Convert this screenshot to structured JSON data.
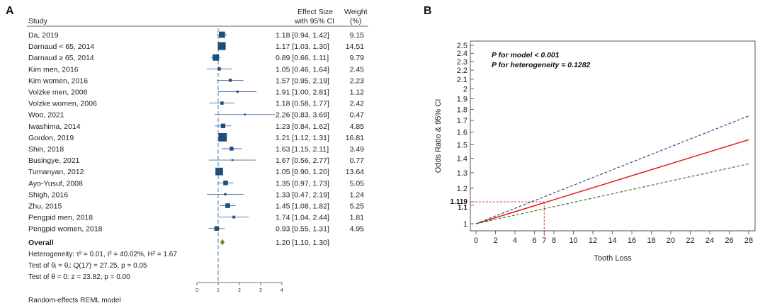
{
  "colors": {
    "marker": "#1f4e79",
    "ci_line": "#4a6f9c",
    "null_line": "#7fa4c8",
    "overall_diamond": "#6b8e23",
    "red": "#e41a1c",
    "blue_dashed": "#34508a",
    "green_dashed": "#3b7d23",
    "ref_dashed": "#e41a1c"
  },
  "panel_a": {
    "label": "A",
    "header_study": "Study",
    "header_es_line1": "Effect Size",
    "header_es_line2": "with 95% CI",
    "header_weight_line1": "Weight",
    "header_weight_line2": "(%)",
    "overall": {
      "label": "Overall",
      "est": 1.2,
      "lo": 1.1,
      "hi": 1.3,
      "ci_text": "1.20 [1.10,  1.30]"
    },
    "heterogeneity": "Heterogeneity: τ² = 0.01, I² = 40.02%, H² = 1.67",
    "test_theta_eq": "Test of θᵢ = θⱼ: Q(17) = 27.25, p = 0.05",
    "test_theta_zero": "Test of θ = 0: z = 23.82, p = 0.00",
    "model_note": "Random-effects REML model",
    "x_ticks": [
      "0",
      "1",
      "2",
      "3",
      "4"
    ]
  },
  "panel_b": {
    "label": "B",
    "annotation_1": "P for model < 0.001",
    "annotation_2": "P for heterogeneity = 0.1282",
    "ref_y_label_1": "1.119",
    "ref_y_label_2": "1.1",
    "ref_x_label": "7"
  },
  "chart_data": [
    {
      "type": "forest",
      "studies": [
        {
          "name": "Da, 2019",
          "est": 1.18,
          "lo": 0.94,
          "hi": 1.42,
          "ci_text": "1.18 [0.94,  1.42]",
          "weight": "9.15"
        },
        {
          "name": "Darnaud < 65, 2014",
          "est": 1.17,
          "lo": 1.03,
          "hi": 1.3,
          "ci_text": "1.17 [1.03,  1.30]",
          "weight": "14.51"
        },
        {
          "name": "Darnaud ≥ 65, 2014",
          "est": 0.89,
          "lo": 0.66,
          "hi": 1.11,
          "ci_text": "0.89 [0.66,  1.11]",
          "weight": "9.79"
        },
        {
          "name": "Kim men, 2016",
          "est": 1.05,
          "lo": 0.46,
          "hi": 1.64,
          "ci_text": "1.05 [0.46,  1.64]",
          "weight": "2.45"
        },
        {
          "name": "Kim women, 2016",
          "est": 1.57,
          "lo": 0.95,
          "hi": 2.19,
          "ci_text": "1.57 [0.95,  2.19]",
          "weight": "2.23"
        },
        {
          "name": "Volzke men, 2006",
          "est": 1.91,
          "lo": 1.0,
          "hi": 2.81,
          "ci_text": "1.91 [1.00,  2.81]",
          "weight": "1.12"
        },
        {
          "name": "Volzke women, 2006",
          "est": 1.18,
          "lo": 0.58,
          "hi": 1.77,
          "ci_text": "1.18 [0.58,  1.77]",
          "weight": "2.42"
        },
        {
          "name": "Woo, 2021",
          "est": 2.26,
          "lo": 0.83,
          "hi": 3.69,
          "ci_text": "2.26 [0.83,  3.69]",
          "weight": "0.47"
        },
        {
          "name": "Iwashima, 2014",
          "est": 1.23,
          "lo": 0.84,
          "hi": 1.62,
          "ci_text": "1.23 [0.84,  1.62]",
          "weight": "4.85"
        },
        {
          "name": "Gordon, 2019",
          "est": 1.21,
          "lo": 1.12,
          "hi": 1.31,
          "ci_text": "1.21 [1.12,  1.31]",
          "weight": "16.81"
        },
        {
          "name": "Shin, 2018",
          "est": 1.63,
          "lo": 1.15,
          "hi": 2.11,
          "ci_text": "1.63 [1.15,  2.11]",
          "weight": "3.49"
        },
        {
          "name": "Busingye, 2021",
          "est": 1.67,
          "lo": 0.56,
          "hi": 2.77,
          "ci_text": "1.67 [0.56,  2.77]",
          "weight": "0.77"
        },
        {
          "name": "Tumanyan, 2012",
          "est": 1.05,
          "lo": 0.9,
          "hi": 1.2,
          "ci_text": "1.05 [0.90,  1.20]",
          "weight": "13.64"
        },
        {
          "name": "Ayo-Yusuf, 2008",
          "est": 1.35,
          "lo": 0.97,
          "hi": 1.73,
          "ci_text": "1.35 [0.97,  1.73]",
          "weight": "5.05"
        },
        {
          "name": "Shigh, 2016",
          "est": 1.33,
          "lo": 0.47,
          "hi": 2.19,
          "ci_text": "1.33 [0.47,  2.19]",
          "weight": "1.24"
        },
        {
          "name": "Zhu, 2015",
          "est": 1.45,
          "lo": 1.08,
          "hi": 1.82,
          "ci_text": "1.45 [1.08,  1.82]",
          "weight": "5.25"
        },
        {
          "name": "Pengpid men, 2018",
          "est": 1.74,
          "lo": 1.04,
          "hi": 2.44,
          "ci_text": "1.74 [1.04,  2.44]",
          "weight": "1.81"
        },
        {
          "name": "Pengpid women, 2018",
          "est": 0.93,
          "lo": 0.55,
          "hi": 1.31,
          "ci_text": "0.93 [0.55,  1.31]",
          "weight": "4.95"
        }
      ],
      "xlim": [
        0,
        4
      ],
      "null_line": 1
    },
    {
      "type": "line",
      "xlabel": "Tooth Loss",
      "ylabel": "Odds Ratio & 95% CI",
      "x_ticks": [
        0,
        2,
        4,
        6,
        7,
        8,
        10,
        12,
        14,
        16,
        18,
        20,
        22,
        24,
        26,
        28
      ],
      "y_ticks": [
        1,
        1.1,
        1.119,
        1.2,
        1.3,
        1.4,
        1.5,
        1.6,
        1.7,
        1.8,
        1.9,
        2,
        2.1,
        2.2,
        2.3,
        2.4,
        2.5
      ],
      "y_scale": "log",
      "xlim": [
        0,
        28
      ],
      "ylim": [
        0.95,
        2.55
      ],
      "reference_point": {
        "x": 7,
        "y": 1.119
      },
      "series": [
        {
          "color": "#e41a1c",
          "style": "solid",
          "x": [
            0,
            28
          ],
          "y": [
            1.0,
            1.54
          ]
        },
        {
          "color": "#34508a",
          "style": "dashed",
          "x": [
            0,
            28
          ],
          "y": [
            1.0,
            1.74
          ]
        },
        {
          "color": "#3b7d23",
          "style": "dashed",
          "x": [
            0,
            28
          ],
          "y": [
            1.0,
            1.36
          ]
        }
      ]
    }
  ]
}
